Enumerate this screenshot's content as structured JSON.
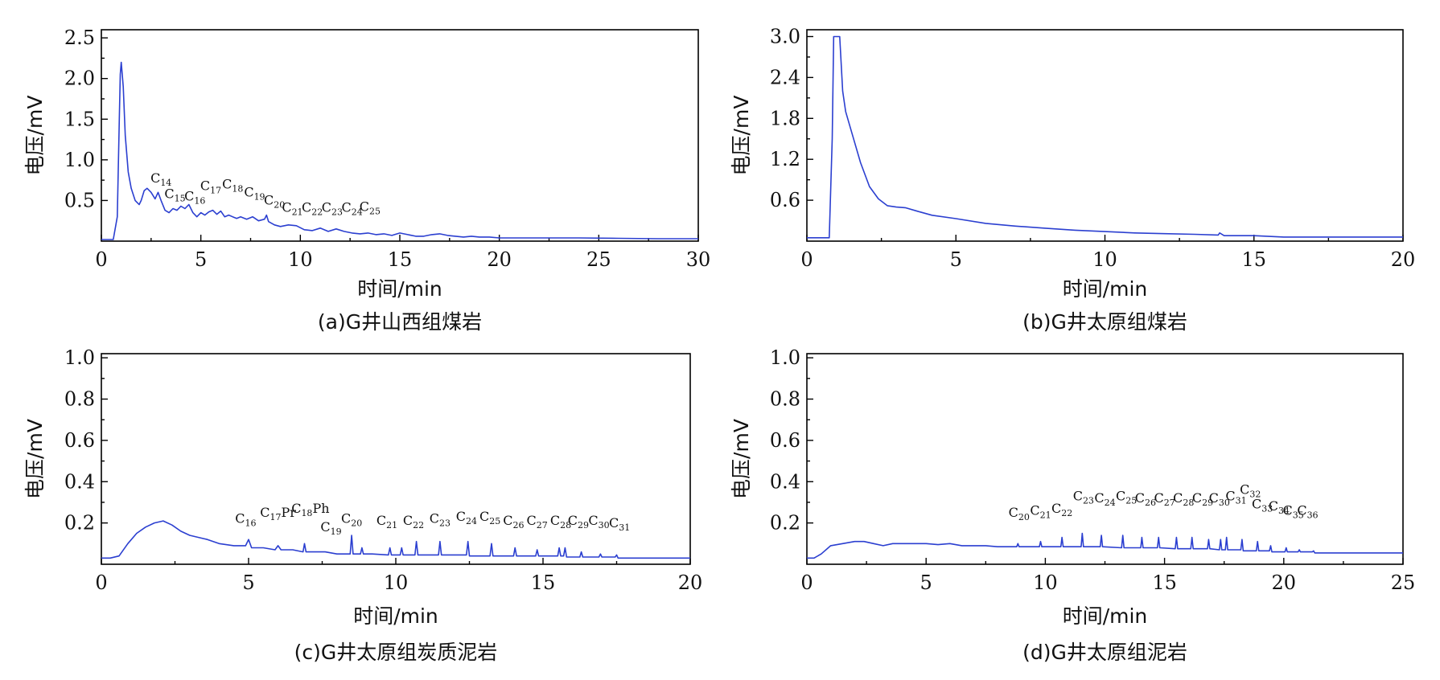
{
  "chart_data": [
    {
      "type": "line",
      "caption": "(a)G井山西组煤岩",
      "xlabel": "时间/min",
      "ylabel": "电压/mV",
      "xlim": [
        0,
        30
      ],
      "ylim": [
        0,
        2.6
      ],
      "xticks": [
        0,
        5,
        10,
        15,
        20,
        25,
        30
      ],
      "yticks": [
        0.5,
        1.0,
        1.5,
        2.0,
        2.5
      ],
      "ytick_labels": [
        "0.5",
        "1.0",
        "1.5",
        "2.0",
        "2.5"
      ],
      "series": [
        {
          "x": [
            0,
            0.5,
            0.6,
            0.8,
            0.9,
            0.95,
            1.0,
            1.1,
            1.2,
            1.35,
            1.5,
            1.7,
            1.9,
            2.0,
            2.15,
            2.3,
            2.5,
            2.7,
            2.85,
            3.0,
            3.2,
            3.4,
            3.6,
            3.8,
            4.0,
            4.2,
            4.4,
            4.6,
            4.8,
            5.0,
            5.2,
            5.4,
            5.6,
            5.8,
            6.0,
            6.2,
            6.4,
            6.6,
            6.8,
            7.0,
            7.3,
            7.6,
            7.9,
            8.2,
            8.3,
            8.4,
            8.7,
            9.0,
            9.4,
            9.8,
            10.2,
            10.6,
            11.0,
            11.4,
            11.8,
            12.2,
            12.6,
            13.0,
            13.4,
            13.8,
            14.2,
            14.6,
            15.0,
            15.4,
            15.8,
            16.2,
            16.6,
            17.0,
            17.4,
            17.8,
            18.2,
            18.6,
            19.0,
            19.5,
            20,
            22,
            24,
            26,
            28,
            30
          ],
          "y": [
            0.02,
            0.02,
            0.02,
            0.3,
            1.5,
            2.05,
            2.2,
            1.9,
            1.3,
            0.85,
            0.65,
            0.5,
            0.45,
            0.5,
            0.62,
            0.65,
            0.6,
            0.52,
            0.6,
            0.5,
            0.38,
            0.35,
            0.4,
            0.38,
            0.43,
            0.4,
            0.45,
            0.35,
            0.3,
            0.35,
            0.32,
            0.36,
            0.38,
            0.33,
            0.37,
            0.3,
            0.32,
            0.3,
            0.28,
            0.3,
            0.27,
            0.3,
            0.25,
            0.27,
            0.32,
            0.24,
            0.2,
            0.18,
            0.2,
            0.19,
            0.14,
            0.13,
            0.16,
            0.12,
            0.15,
            0.12,
            0.1,
            0.09,
            0.1,
            0.08,
            0.09,
            0.07,
            0.1,
            0.08,
            0.06,
            0.06,
            0.08,
            0.09,
            0.07,
            0.06,
            0.05,
            0.06,
            0.05,
            0.05,
            0.04,
            0.04,
            0.04,
            0.035,
            0.03,
            0.03
          ]
        }
      ],
      "annotations": [
        {
          "base": "C",
          "sub": "14",
          "x": 3.0,
          "y": 0.72
        },
        {
          "base": "C",
          "sub": "15",
          "x": 3.7,
          "y": 0.53
        },
        {
          "base": "C",
          "sub": "16",
          "x": 4.7,
          "y": 0.5
        },
        {
          "base": "C",
          "sub": "17",
          "x": 5.5,
          "y": 0.63
        },
        {
          "base": "C",
          "sub": "18",
          "x": 6.6,
          "y": 0.65
        },
        {
          "base": "C",
          "sub": "19",
          "x": 7.7,
          "y": 0.55
        },
        {
          "base": "C",
          "sub": "20",
          "x": 8.7,
          "y": 0.45
        },
        {
          "base": "C",
          "sub": "21",
          "x": 9.6,
          "y": 0.36
        },
        {
          "base": "C",
          "sub": "22",
          "x": 10.6,
          "y": 0.36
        },
        {
          "base": "C",
          "sub": "23",
          "x": 11.6,
          "y": 0.36
        },
        {
          "base": "C",
          "sub": "24",
          "x": 12.6,
          "y": 0.36
        },
        {
          "base": "C",
          "sub": "25",
          "x": 13.5,
          "y": 0.37
        }
      ]
    },
    {
      "type": "line",
      "caption": "(b)G井太原组煤岩",
      "xlabel": "时间/min",
      "ylabel": "电压/mV",
      "xlim": [
        0,
        20
      ],
      "ylim": [
        0,
        3.1
      ],
      "xticks": [
        0,
        5,
        10,
        15,
        20
      ],
      "yticks": [
        0.6,
        1.2,
        1.8,
        2.4,
        3.0
      ],
      "ytick_labels": [
        "0.6",
        "1.2",
        "1.8",
        "2.4",
        "3.0"
      ],
      "series": [
        {
          "x": [
            0,
            0.75,
            0.85,
            0.9,
            1.0,
            1.1,
            1.2,
            1.3,
            1.5,
            1.8,
            2.1,
            2.4,
            2.7,
            3.0,
            3.3,
            3.7,
            4.2,
            5.0,
            6.0,
            7.0,
            8.0,
            9.0,
            10.0,
            11.0,
            12.0,
            13.0,
            13.8,
            13.85,
            14.0,
            15.0,
            16.0,
            18.0,
            20.0
          ],
          "y": [
            0.05,
            0.05,
            1.5,
            3.0,
            3.0,
            3.0,
            2.2,
            1.9,
            1.6,
            1.15,
            0.8,
            0.62,
            0.52,
            0.5,
            0.49,
            0.44,
            0.38,
            0.33,
            0.26,
            0.22,
            0.19,
            0.16,
            0.14,
            0.12,
            0.11,
            0.1,
            0.09,
            0.12,
            0.08,
            0.08,
            0.06,
            0.06,
            0.06
          ]
        }
      ],
      "annotations": []
    },
    {
      "type": "line",
      "caption": "(c)G井太原组炭质泥岩",
      "xlabel": "时间/min",
      "ylabel": "电压/mV",
      "xlim": [
        0,
        20
      ],
      "ylim": [
        0,
        1.02
      ],
      "xticks": [
        0,
        5,
        10,
        15,
        20
      ],
      "yticks": [
        0.2,
        0.4,
        0.6,
        0.8,
        1.0
      ],
      "ytick_labels": [
        "0.2",
        "0.4",
        "0.6",
        "0.8",
        "1.0"
      ],
      "series": [
        {
          "x": [
            0,
            0.3,
            0.6,
            0.9,
            1.2,
            1.5,
            1.8,
            2.1,
            2.4,
            2.7,
            3.0,
            3.3,
            3.6,
            4.0,
            4.5,
            4.9,
            5.0,
            5.1,
            5.5,
            5.9,
            6.0,
            6.1,
            6.5,
            6.85,
            6.9,
            6.95,
            7.3,
            7.6,
            8.0,
            8.45,
            8.5,
            8.55,
            8.8,
            8.85,
            8.9,
            9.2,
            9.75,
            9.8,
            9.85,
            10.15,
            10.2,
            10.25,
            10.65,
            10.7,
            10.75,
            11.45,
            11.5,
            11.55,
            12.4,
            12.45,
            12.5,
            13.2,
            13.25,
            13.3,
            14.0,
            14.05,
            14.1,
            14.75,
            14.8,
            14.85,
            15.5,
            15.55,
            15.6,
            15.7,
            15.75,
            15.8,
            16.25,
            16.3,
            16.35,
            16.9,
            16.95,
            17.0,
            17.45,
            17.5,
            17.55,
            18,
            19,
            20
          ],
          "y": [
            0.03,
            0.03,
            0.04,
            0.1,
            0.15,
            0.18,
            0.2,
            0.21,
            0.19,
            0.16,
            0.14,
            0.13,
            0.12,
            0.1,
            0.09,
            0.09,
            0.12,
            0.08,
            0.08,
            0.07,
            0.09,
            0.07,
            0.07,
            0.06,
            0.1,
            0.06,
            0.06,
            0.06,
            0.05,
            0.05,
            0.14,
            0.05,
            0.05,
            0.08,
            0.05,
            0.05,
            0.045,
            0.08,
            0.045,
            0.045,
            0.08,
            0.045,
            0.045,
            0.11,
            0.045,
            0.045,
            0.11,
            0.045,
            0.045,
            0.11,
            0.04,
            0.04,
            0.1,
            0.04,
            0.04,
            0.08,
            0.04,
            0.04,
            0.07,
            0.04,
            0.04,
            0.08,
            0.04,
            0.04,
            0.08,
            0.035,
            0.035,
            0.06,
            0.035,
            0.035,
            0.05,
            0.035,
            0.035,
            0.045,
            0.03,
            0.03,
            0.03,
            0.03
          ]
        }
      ],
      "annotations": [
        {
          "base": "C",
          "sub": "16",
          "x": 4.9,
          "y": 0.2
        },
        {
          "base": "C",
          "sub": "17",
          "sub_after": "Pr",
          "x": 6.0,
          "y": 0.23
        },
        {
          "base": "C",
          "sub": "18",
          "sub_after": "Ph",
          "x": 7.1,
          "y": 0.25
        },
        {
          "base": "C",
          "sub": "19",
          "x": 7.8,
          "y": 0.16
        },
        {
          "base": "C",
          "sub": "20",
          "x": 8.5,
          "y": 0.2
        },
        {
          "base": "C",
          "sub": "21",
          "x": 9.7,
          "y": 0.19
        },
        {
          "base": "C",
          "sub": "22",
          "x": 10.6,
          "y": 0.19
        },
        {
          "base": "C",
          "sub": "23",
          "x": 11.5,
          "y": 0.2
        },
        {
          "base": "C",
          "sub": "24",
          "x": 12.4,
          "y": 0.21
        },
        {
          "base": "C",
          "sub": "25",
          "x": 13.2,
          "y": 0.21
        },
        {
          "base": "C",
          "sub": "26",
          "x": 14.0,
          "y": 0.19
        },
        {
          "base": "C",
          "sub": "27",
          "x": 14.8,
          "y": 0.19
        },
        {
          "base": "C",
          "sub": "28",
          "x": 15.6,
          "y": 0.19
        },
        {
          "base": "C",
          "sub": "29",
          "x": 16.2,
          "y": 0.19
        },
        {
          "base": "C",
          "sub": "30",
          "x": 16.9,
          "y": 0.19
        },
        {
          "base": "C",
          "sub": "31",
          "x": 17.6,
          "y": 0.18
        }
      ]
    },
    {
      "type": "line",
      "caption": "(d)G井太原组泥岩",
      "xlabel": "时间/min",
      "ylabel": "电压/mV",
      "xlim": [
        0,
        25
      ],
      "ylim": [
        0,
        1.02
      ],
      "xticks": [
        0,
        5,
        10,
        15,
        20,
        25
      ],
      "yticks": [
        0.2,
        0.4,
        0.6,
        0.8,
        1.0
      ],
      "ytick_labels": [
        "0.2",
        "0.4",
        "0.6",
        "0.8",
        "1.0"
      ],
      "series": [
        {
          "x": [
            0,
            0.3,
            0.6,
            1.0,
            1.5,
            2.0,
            2.4,
            2.8,
            3.2,
            3.6,
            4.0,
            4.5,
            5.0,
            5.5,
            6.0,
            6.5,
            7.0,
            7.5,
            8.0,
            8.8,
            8.85,
            8.9,
            9.75,
            9.8,
            9.85,
            10.65,
            10.7,
            10.75,
            11.5,
            11.55,
            11.6,
            12.3,
            12.35,
            12.4,
            13.2,
            13.25,
            13.3,
            14.0,
            14.05,
            14.1,
            14.7,
            14.75,
            14.8,
            15.45,
            15.5,
            15.55,
            16.1,
            16.15,
            16.2,
            16.8,
            16.85,
            16.9,
            17.3,
            17.35,
            17.4,
            17.55,
            17.6,
            17.65,
            18.2,
            18.25,
            18.3,
            18.85,
            18.9,
            18.95,
            19.4,
            19.45,
            19.5,
            20.05,
            20.1,
            20.15,
            20.6,
            20.65,
            20.7,
            21.2,
            21.25,
            21.3,
            22,
            23,
            24,
            25
          ],
          "y": [
            0.03,
            0.03,
            0.05,
            0.09,
            0.1,
            0.11,
            0.11,
            0.1,
            0.09,
            0.1,
            0.1,
            0.1,
            0.1,
            0.095,
            0.1,
            0.09,
            0.09,
            0.09,
            0.085,
            0.085,
            0.1,
            0.085,
            0.085,
            0.11,
            0.085,
            0.085,
            0.13,
            0.085,
            0.085,
            0.15,
            0.085,
            0.085,
            0.14,
            0.085,
            0.08,
            0.14,
            0.08,
            0.08,
            0.13,
            0.08,
            0.08,
            0.13,
            0.08,
            0.075,
            0.13,
            0.075,
            0.075,
            0.13,
            0.075,
            0.075,
            0.12,
            0.075,
            0.07,
            0.12,
            0.07,
            0.07,
            0.13,
            0.07,
            0.07,
            0.12,
            0.065,
            0.065,
            0.11,
            0.065,
            0.065,
            0.09,
            0.06,
            0.06,
            0.08,
            0.06,
            0.06,
            0.07,
            0.06,
            0.06,
            0.065,
            0.055,
            0.055,
            0.055,
            0.055,
            0.055
          ]
        }
      ],
      "annotations": [
        {
          "base": "C",
          "sub": "20",
          "x": 8.9,
          "y": 0.23
        },
        {
          "base": "C",
          "sub": "21",
          "x": 9.8,
          "y": 0.24
        },
        {
          "base": "C",
          "sub": "22",
          "x": 10.7,
          "y": 0.25
        },
        {
          "base": "C",
          "sub": "23",
          "x": 11.6,
          "y": 0.31
        },
        {
          "base": "C",
          "sub": "24",
          "x": 12.5,
          "y": 0.3
        },
        {
          "base": "C",
          "sub": "25",
          "x": 13.4,
          "y": 0.31
        },
        {
          "base": "C",
          "sub": "26",
          "x": 14.2,
          "y": 0.3
        },
        {
          "base": "C",
          "sub": "27",
          "x": 15.0,
          "y": 0.3
        },
        {
          "base": "C",
          "sub": "28",
          "x": 15.8,
          "y": 0.3
        },
        {
          "base": "C",
          "sub": "29",
          "x": 16.6,
          "y": 0.3
        },
        {
          "base": "C",
          "sub": "30",
          "x": 17.3,
          "y": 0.3
        },
        {
          "base": "C",
          "sub": "31",
          "x": 18.0,
          "y": 0.31
        },
        {
          "base": "C",
          "sub": "32",
          "x": 18.6,
          "y": 0.34
        },
        {
          "base": "C",
          "sub": "33",
          "x": 19.1,
          "y": 0.27
        },
        {
          "base": "C",
          "sub": "34",
          "x": 19.8,
          "y": 0.26
        },
        {
          "base": "C",
          "sub": "35",
          "x": 20.4,
          "y": 0.24
        },
        {
          "base": "C",
          "sub": "36",
          "x": 21.0,
          "y": 0.24
        }
      ]
    }
  ]
}
